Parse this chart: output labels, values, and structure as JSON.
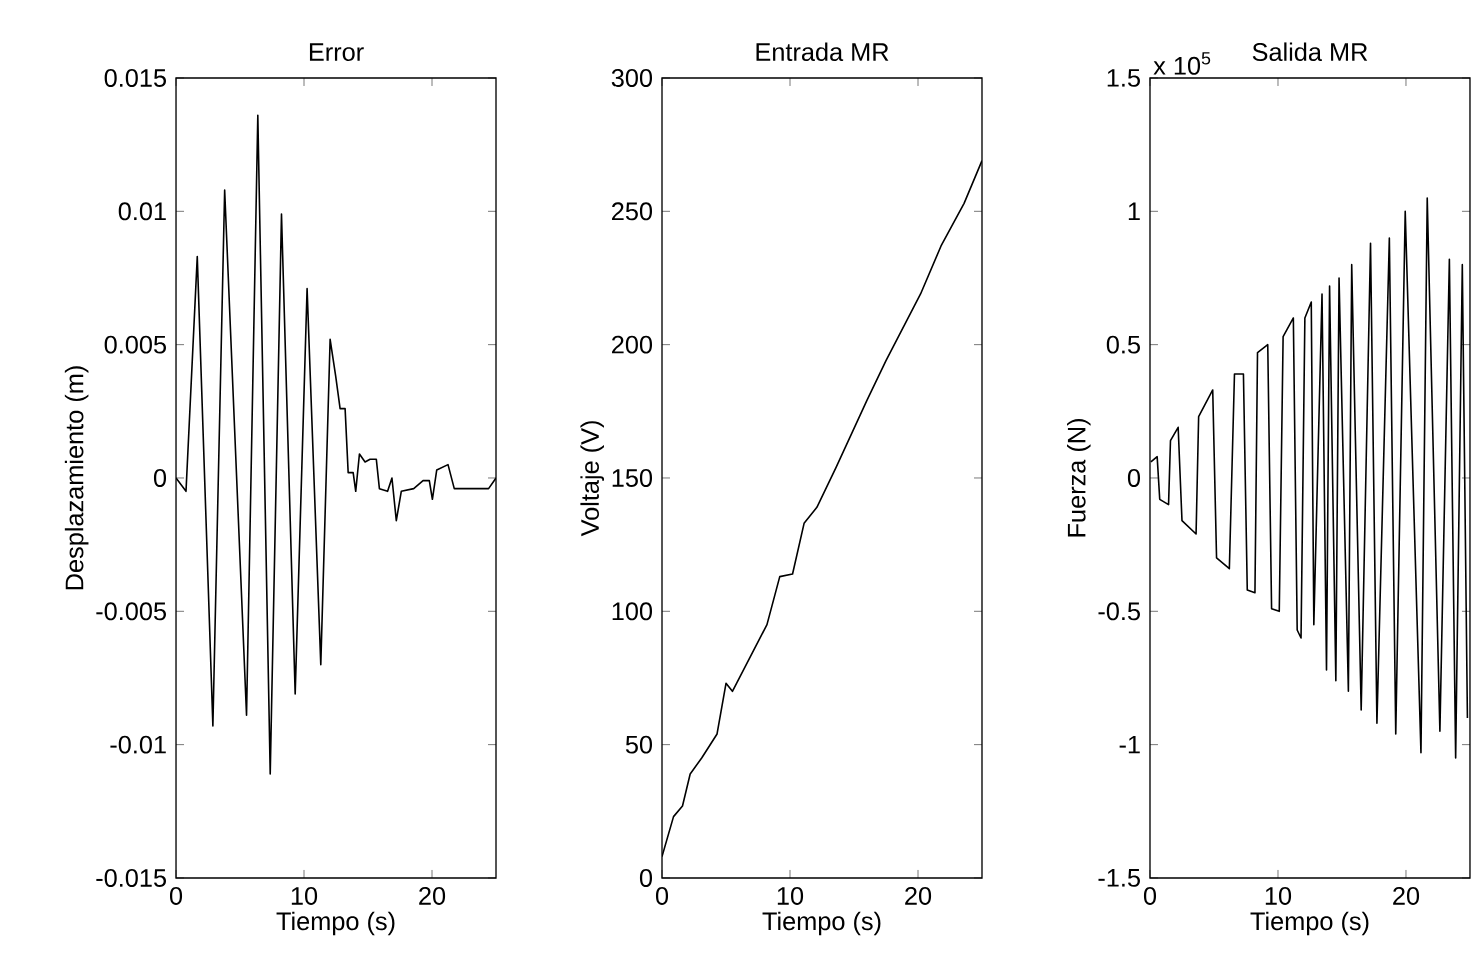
{
  "chart_data": [
    {
      "type": "line",
      "title": "Error",
      "xlabel": "Tiempo (s)",
      "ylabel": "Desplazamiento (m)",
      "xlim": [
        0,
        25
      ],
      "ylim": [
        -0.015,
        0.015
      ],
      "xticks": [
        0,
        10,
        20
      ],
      "yticks": [
        -0.015,
        -0.01,
        -0.005,
        0,
        0.005,
        0.01,
        0.015
      ],
      "series": [
        {
          "color": "#000000",
          "x": [
            0,
            0.78,
            1.66,
            2.88,
            3.8,
            5.51,
            6.39,
            7.36,
            8.24,
            9.31,
            10.24,
            11.31,
            12.04,
            12.48,
            12.82,
            13.21,
            13.45,
            13.84,
            14.04,
            14.33,
            14.77,
            15.16,
            15.65,
            15.89,
            16.53,
            16.87,
            17.21,
            17.6,
            18.57,
            19.3,
            19.79,
            20.03,
            20.37,
            21.25,
            21.74,
            24.42,
            25
          ],
          "values": [
            0,
            -0.0005,
            0.0083,
            -0.0093,
            0.0108,
            -0.0089,
            0.0136,
            -0.0111,
            0.0099,
            -0.0081,
            0.0071,
            -0.007,
            0.0052,
            0.0038,
            0.0026,
            0.0026,
            0.0002,
            0.0002,
            -0.0005,
            0.0009,
            0.0006,
            0.0007,
            0.0007,
            -0.0004,
            -0.0005,
            0,
            -0.0016,
            -0.0005,
            -0.0004,
            -0.0001,
            -0.0001,
            -0.0008,
            0.0003,
            0.0005,
            -0.0004,
            -0.0004,
            0
          ]
        }
      ]
    },
    {
      "type": "line",
      "title": "Entrada MR",
      "xlabel": "Tiempo (s)",
      "ylabel": "Voltaje (V)",
      "xlim": [
        0,
        25
      ],
      "ylim": [
        0,
        300
      ],
      "xticks": [
        0,
        10,
        20
      ],
      "yticks": [
        0,
        50,
        100,
        150,
        200,
        250,
        300
      ],
      "series": [
        {
          "color": "#000000",
          "x": [
            0,
            0.9,
            1.6,
            2.2,
            3.1,
            4.3,
            5.0,
            5.5,
            8.2,
            9.2,
            10.2,
            11.1,
            12.1,
            13.6,
            16.0,
            17.5,
            20.2,
            21.8,
            23.6,
            25
          ],
          "values": [
            8,
            23,
            27,
            39,
            45,
            54,
            73,
            70,
            95,
            113,
            114,
            133,
            139,
            154,
            179,
            194,
            219,
            237,
            253,
            269
          ]
        }
      ]
    },
    {
      "type": "line",
      "title": "Salida MR",
      "xlabel": "Tiempo (s)",
      "ylabel": "Fuerza (N)",
      "annotations": [
        "x 10$^{5}$"
      ],
      "xlim": [
        0,
        25
      ],
      "ylim": [
        -1.5,
        1.5
      ],
      "xticks": [
        0,
        10,
        20
      ],
      "yticks": [
        -1.5,
        -1,
        -0.5,
        0,
        0.5,
        1,
        1.5
      ],
      "series": [
        {
          "color": "#000000",
          "x": [
            0.07,
            0.56,
            0.76,
            1.45,
            1.6,
            2.2,
            2.5,
            3.6,
            3.8,
            4.9,
            5.2,
            6.2,
            6.6,
            7.3,
            7.6,
            8.2,
            8.4,
            9.2,
            9.5,
            10.1,
            10.4,
            11.2,
            11.5,
            11.8,
            12.1,
            12.6,
            12.8,
            13.44,
            13.79,
            14.03,
            14.52,
            14.77,
            15.5,
            15.76,
            16.5,
            17.23,
            17.73,
            18.7,
            19.2,
            19.94,
            21.17,
            21.66,
            22.65,
            23.39,
            23.88,
            24.4,
            24.8
          ],
          "values": [
            0.06,
            0.08,
            -0.08,
            -0.1,
            0.14,
            0.19,
            -0.16,
            -0.21,
            0.23,
            0.33,
            -0.3,
            -0.34,
            0.39,
            0.39,
            -0.42,
            -0.43,
            0.47,
            0.5,
            -0.49,
            -0.5,
            0.53,
            0.6,
            -0.57,
            -0.6,
            0.6,
            0.66,
            -0.55,
            0.69,
            -0.72,
            0.72,
            -0.76,
            0.75,
            -0.8,
            0.8,
            -0.87,
            0.88,
            -0.92,
            0.9,
            -0.96,
            1.0,
            -1.03,
            1.05,
            -0.95,
            0.82,
            -1.05,
            0.8,
            -0.9
          ]
        }
      ]
    }
  ]
}
